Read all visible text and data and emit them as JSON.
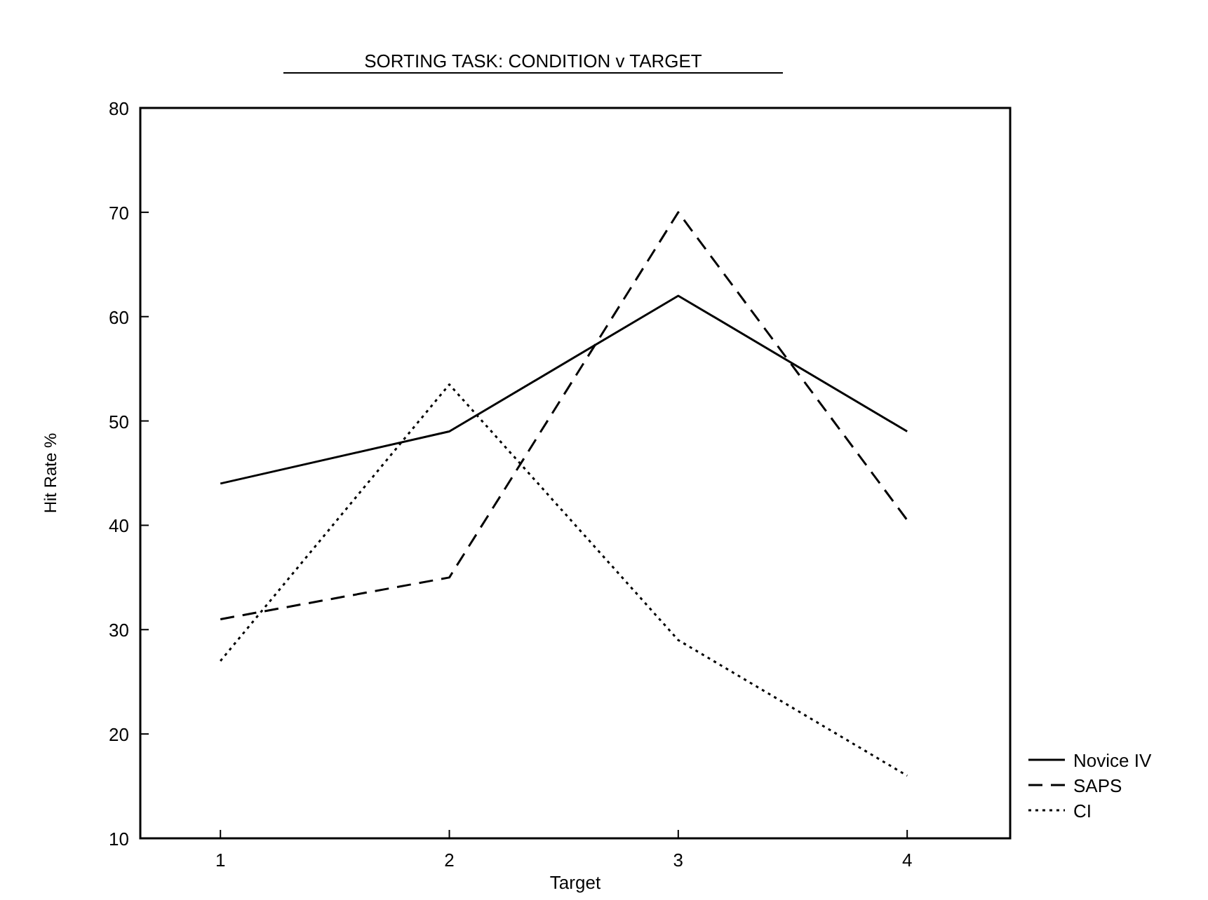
{
  "chart_data": {
    "type": "line",
    "title": "SORTING TASK: CONDITION v TARGET",
    "xlabel": "Target",
    "ylabel": "Hit Rate %",
    "x": [
      1,
      2,
      3,
      4
    ],
    "xlim": [
      0.65,
      4.45
    ],
    "xticks": [
      1,
      2,
      3,
      4
    ],
    "ylim": [
      10,
      80
    ],
    "yticks": [
      10,
      20,
      30,
      40,
      50,
      60,
      70,
      80
    ],
    "legend": "bottom right",
    "grid": false,
    "series": [
      {
        "name": "Novice IV",
        "color": "#000000",
        "line_style": "solid",
        "values": [
          44,
          49,
          62,
          49
        ]
      },
      {
        "name": "SAPS",
        "color": "#000000",
        "line_style": "dashed",
        "values": [
          31,
          35,
          70,
          40.5
        ]
      },
      {
        "name": "CI",
        "color": "#000000",
        "line_style": "dotted",
        "values": [
          27,
          53.5,
          29,
          16
        ]
      }
    ]
  }
}
